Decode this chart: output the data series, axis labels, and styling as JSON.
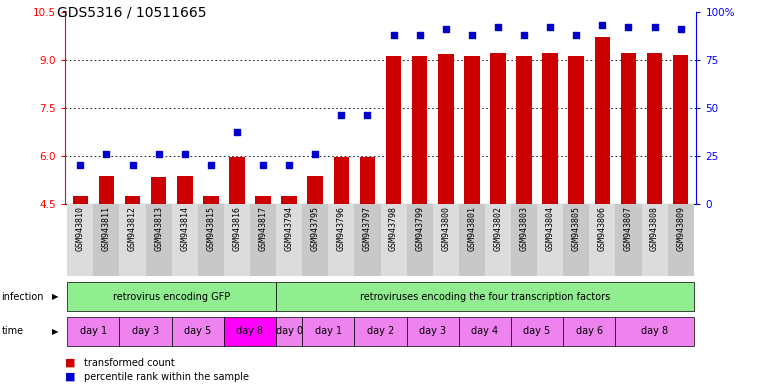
{
  "title": "GDS5316 / 10511665",
  "samples": [
    "GSM943810",
    "GSM943811",
    "GSM943812",
    "GSM943813",
    "GSM943814",
    "GSM943815",
    "GSM943816",
    "GSM943817",
    "GSM943794",
    "GSM943795",
    "GSM943796",
    "GSM943797",
    "GSM943798",
    "GSM943799",
    "GSM943800",
    "GSM943801",
    "GSM943802",
    "GSM943803",
    "GSM943804",
    "GSM943805",
    "GSM943806",
    "GSM943807",
    "GSM943808",
    "GSM943809"
  ],
  "red_values": [
    4.72,
    5.35,
    4.72,
    5.32,
    5.35,
    4.72,
    5.95,
    4.72,
    4.72,
    5.35,
    5.95,
    5.95,
    9.1,
    9.1,
    9.18,
    9.1,
    9.2,
    9.1,
    9.2,
    9.1,
    9.7,
    9.2,
    9.2,
    9.15
  ],
  "blue_percentiles": [
    20,
    26,
    20,
    26,
    26,
    20,
    37,
    20,
    20,
    26,
    46,
    46,
    88,
    88,
    91,
    88,
    92,
    88,
    92,
    88,
    93,
    92,
    92,
    91
  ],
  "ylim_left": [
    4.5,
    10.5
  ],
  "ylim_right": [
    0,
    100
  ],
  "yticks_left": [
    4.5,
    6.0,
    7.5,
    9.0,
    10.5
  ],
  "yticks_right": [
    0,
    25,
    50,
    75,
    100
  ],
  "ytick_labels_right": [
    "0",
    "25",
    "50",
    "75",
    "100%"
  ],
  "bar_color": "#CC0000",
  "dot_color": "#0000CC",
  "bg_color": "#FFFFFF",
  "title_fontsize": 10,
  "tick_fontsize": 7.5,
  "sample_fontsize": 6,
  "annotation_fontsize": 7,
  "time_groups": [
    {
      "label": "day 1",
      "start": 0,
      "end": 2,
      "color": "#EE82EE"
    },
    {
      "label": "day 3",
      "start": 2,
      "end": 4,
      "color": "#EE82EE"
    },
    {
      "label": "day 5",
      "start": 4,
      "end": 6,
      "color": "#EE82EE"
    },
    {
      "label": "day 8",
      "start": 6,
      "end": 8,
      "color": "#FF00FF"
    },
    {
      "label": "day 0",
      "start": 8,
      "end": 9,
      "color": "#EE82EE"
    },
    {
      "label": "day 1",
      "start": 9,
      "end": 11,
      "color": "#EE82EE"
    },
    {
      "label": "day 2",
      "start": 11,
      "end": 13,
      "color": "#EE82EE"
    },
    {
      "label": "day 3",
      "start": 13,
      "end": 15,
      "color": "#EE82EE"
    },
    {
      "label": "day 4",
      "start": 15,
      "end": 17,
      "color": "#EE82EE"
    },
    {
      "label": "day 5",
      "start": 17,
      "end": 19,
      "color": "#EE82EE"
    },
    {
      "label": "day 6",
      "start": 19,
      "end": 21,
      "color": "#EE82EE"
    },
    {
      "label": "day 8",
      "start": 21,
      "end": 24,
      "color": "#EE82EE"
    }
  ]
}
